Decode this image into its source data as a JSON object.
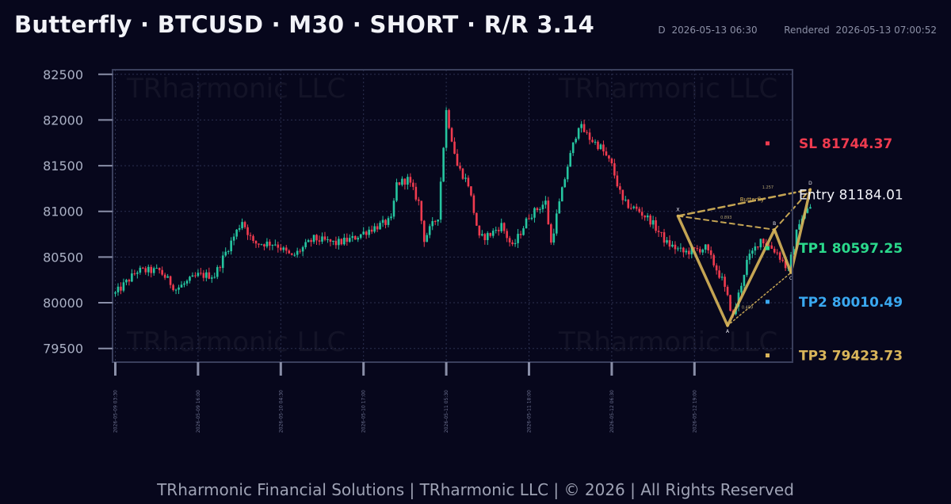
{
  "header": {
    "title": "Butterfly · BTCUSD · M30 · SHORT · R/R 3.14",
    "data_time_prefix": "D",
    "data_time": "2026-05-13 06:30",
    "rendered_prefix": "Rendered",
    "rendered_time": "2026-05-13 07:00:52"
  },
  "watermark": "TRharmonic LLC",
  "footer": "TRharmonic Financial Solutions   |   TRharmonic LLC   |   © 2026   |   All Rights Reserved",
  "colors": {
    "background": "#07071c",
    "up_candle": "#26c5a0",
    "down_candle": "#ef3b4f",
    "pattern": "#d9b55a",
    "sl": "#ef3b4f",
    "entry": "#f2f3f8",
    "tp1": "#2bd98c",
    "tp2": "#3aa8f0",
    "tp3": "#d9b55a"
  },
  "chart_data": {
    "type": "candlestick",
    "ylim": [
      79350,
      82550
    ],
    "yticks": [
      79500,
      80000,
      80500,
      81000,
      81500,
      82000,
      82500
    ],
    "grid": true,
    "xticks": [
      "2026-05-09 03:30",
      "2026-05-09 16:00",
      "2026-05-10 04:30",
      "2026-05-10 17:00",
      "2026-05-11 05:30",
      "2026-05-11 18:00",
      "2026-05-12 06:30",
      "2026-05-12 19:00"
    ],
    "candle_count": 200,
    "price_path": [
      [
        0,
        80100
      ],
      [
        8,
        80350
      ],
      [
        16,
        80350
      ],
      [
        22,
        80150
      ],
      [
        30,
        80300
      ],
      [
        36,
        80300
      ],
      [
        40,
        80550
      ],
      [
        46,
        80900
      ],
      [
        50,
        80650
      ],
      [
        58,
        80650
      ],
      [
        64,
        80500
      ],
      [
        72,
        80700
      ],
      [
        80,
        80650
      ],
      [
        86,
        80700
      ],
      [
        92,
        80800
      ],
      [
        100,
        80900
      ],
      [
        102,
        81300
      ],
      [
        106,
        81350
      ],
      [
        110,
        81100
      ],
      [
        112,
        80700
      ],
      [
        117,
        80950
      ],
      [
        120,
        82100
      ],
      [
        124,
        81500
      ],
      [
        128,
        81300
      ],
      [
        132,
        80700
      ],
      [
        136,
        80750
      ],
      [
        140,
        80850
      ],
      [
        144,
        80600
      ],
      [
        150,
        80950
      ],
      [
        156,
        81100
      ],
      [
        158,
        80650
      ],
      [
        160,
        80950
      ],
      [
        164,
        81500
      ],
      [
        168,
        81950
      ],
      [
        172,
        81800
      ],
      [
        176,
        81700
      ],
      [
        180,
        81500
      ],
      [
        184,
        81100
      ],
      [
        190,
        81000
      ],
      [
        194,
        80900
      ],
      [
        200,
        80650
      ],
      [
        206,
        80550
      ],
      [
        214,
        80600
      ],
      [
        220,
        80250
      ],
      [
        224,
        79850
      ],
      [
        229,
        80450
      ],
      [
        234,
        80700
      ],
      [
        240,
        80550
      ],
      [
        244,
        80350
      ],
      [
        248,
        80900
      ],
      [
        252,
        81050
      ]
    ],
    "pattern": {
      "name": "Butterfly",
      "points": [
        {
          "label": "X",
          "index": 204,
          "price": 80950
        },
        {
          "label": "A",
          "index": 222,
          "price": 79750
        },
        {
          "label": "B",
          "index": 239,
          "price": 80800
        },
        {
          "label": "C",
          "index": 245,
          "price": 80330
        },
        {
          "label": "D",
          "index": 252,
          "price": 81240
        }
      ],
      "ratios": [
        "0.893",
        "1.257",
        "0.459"
      ]
    },
    "levels": [
      {
        "name": "SL",
        "value": 81744.37,
        "label": "SL  81744.37"
      },
      {
        "name": "Entry",
        "value": 81184.01,
        "label": "Entry  81184.01"
      },
      {
        "name": "TP1",
        "value": 80597.25,
        "label": "TP1  80597.25"
      },
      {
        "name": "TP2",
        "value": 80010.49,
        "label": "TP2  80010.49"
      },
      {
        "name": "TP3",
        "value": 79423.73,
        "label": "TP3  79423.73"
      }
    ]
  }
}
